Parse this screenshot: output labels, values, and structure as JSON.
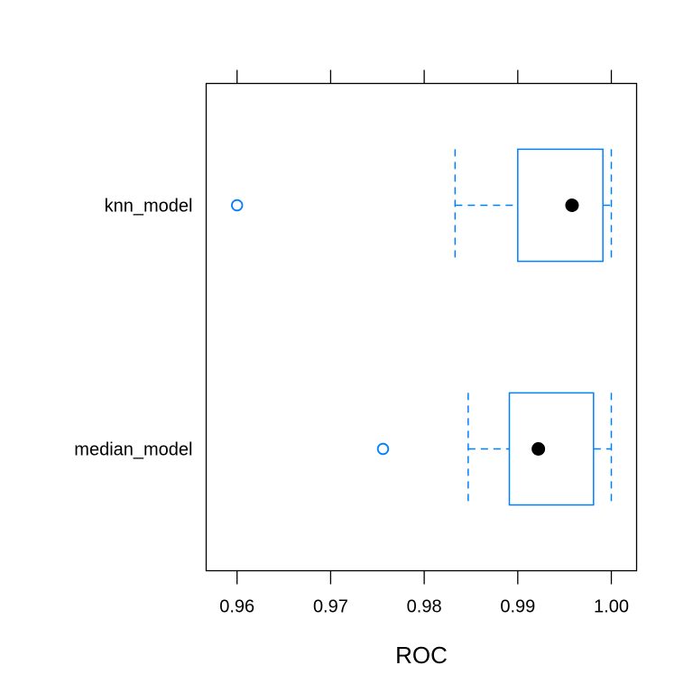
{
  "chart_data": {
    "type": "box",
    "orientation": "horizontal",
    "xlabel": "ROC",
    "xlim": [
      0.9567,
      1.0027
    ],
    "xticks": [
      0.96,
      0.97,
      0.98,
      0.99,
      1.0
    ],
    "xtick_labels": [
      "0.96",
      "0.97",
      "0.98",
      "0.99",
      "1.00"
    ],
    "categories": [
      "knn_model",
      "median_model"
    ],
    "boxes": [
      {
        "category": "knn_model",
        "whisker_low": 0.9833,
        "q1": 0.99,
        "median": 0.9958,
        "q3": 0.9991,
        "whisker_high": 1.0,
        "outliers": [
          0.96
        ]
      },
      {
        "category": "median_model",
        "whisker_low": 0.9847,
        "q1": 0.9891,
        "median": 0.9922,
        "q3": 0.9981,
        "whisker_high": 1.0,
        "outliers": [
          0.9756
        ]
      }
    ],
    "colors": {
      "box": "#0080ff",
      "median_dot": "#000000",
      "frame": "#000000"
    },
    "grid": false,
    "legend": "none"
  }
}
